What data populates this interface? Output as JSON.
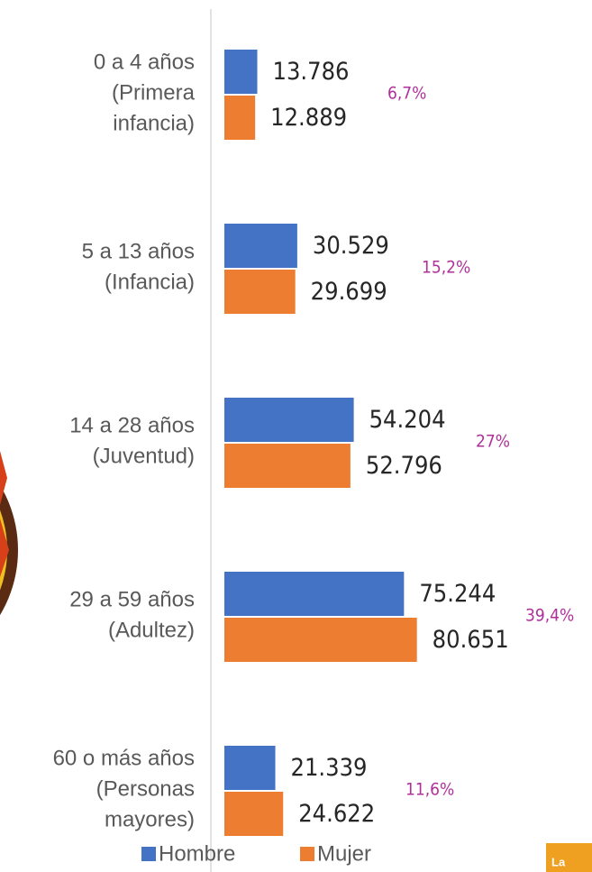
{
  "chart_data": {
    "type": "bar",
    "orientation": "horizontal",
    "categories": [
      [
        "0 a 4 años",
        "(Primera",
        "infancia)"
      ],
      [
        "5 a 13 años",
        "(Infancia)"
      ],
      [
        "14 a 28 años",
        "(Juventud)"
      ],
      [
        "29 a 59 años",
        "(Adultez)"
      ],
      [
        "60 o más años",
        "(Personas",
        "mayores)"
      ]
    ],
    "series": [
      {
        "name": "Hombre",
        "color": "#4472c4",
        "values": [
          13786,
          30529,
          54204,
          75244,
          21339
        ],
        "value_labels": [
          "13.786",
          "30.529",
          "54.204",
          "75.244",
          "21.339"
        ]
      },
      {
        "name": "Mujer",
        "color": "#ed7d31",
        "values": [
          12889,
          29699,
          52796,
          80651,
          24622
        ],
        "value_labels": [
          "12.889",
          "29.699",
          "52.796",
          "80.651",
          "24.622"
        ]
      }
    ],
    "annotations": [
      "6,7%",
      "15,2%",
      "27%",
      "39,4%",
      "11,6%"
    ],
    "xlim": [
      0,
      154000
    ]
  }
}
